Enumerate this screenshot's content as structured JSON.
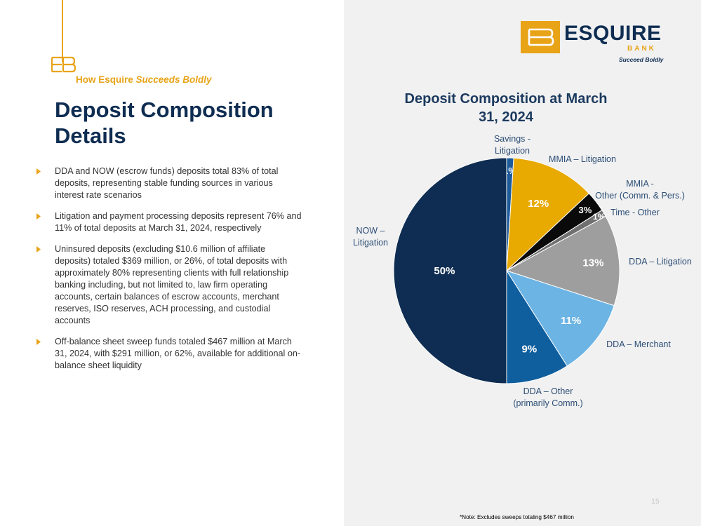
{
  "kicker": {
    "bold": "How Esquire ",
    "italic": "Succeeds Boldly"
  },
  "title": "Deposit Composition Details",
  "bullets": [
    "DDA and NOW (escrow funds) deposits total 83% of total deposits, representing stable funding sources in various interest rate scenarios",
    "Litigation and payment processing deposits represent 76% and 11% of total deposits at March 31, 2024, respectively",
    "Uninsured deposits (excluding $10.6 million of affiliate deposits) totaled $369 million, or 26%, of total deposits with approximately 80% representing clients with full relationship banking including, but not limited to, law firm operating accounts, certain balances of escrow accounts, merchant reserves, ISO reserves, ACH processing, and custodial accounts",
    "Off-balance sheet sweep funds totaled $467 million at March 31, 2024, with $291 million, or 62%, available for additional on-balance sheet liquidity"
  ],
  "logo": {
    "name": "ESQUIRE",
    "sub": "BANK",
    "tagline": "Succeed Boldly"
  },
  "page_number": "15",
  "footnote": "*Note: Excludes sweeps totaling $467 million",
  "colors": {
    "navy": "#0f2d52",
    "gold": "#e8a317",
    "panel": "#f1f1f2"
  },
  "icons": {
    "bullet": "gold-chevron-bullet",
    "brand": "eb-monogram"
  },
  "chart_data": {
    "type": "pie",
    "title": "Deposit Composition at March 31, 2024",
    "slices": [
      {
        "label": "Savings - Litigation",
        "value": 1,
        "data_label": "1%",
        "color": "#1d5a9a"
      },
      {
        "label": "MMIA – Litigation",
        "value": 12,
        "data_label": "12%",
        "color": "#e8a900"
      },
      {
        "label": "MMIA - Other (Comm. & Pers.)",
        "value": 3,
        "data_label": "3%",
        "color": "#0a0a0a"
      },
      {
        "label": "Time - Other",
        "value": 1,
        "data_label": "1%",
        "color": "#707070"
      },
      {
        "label": "DDA – Litigation",
        "value": 13,
        "data_label": "13%",
        "color": "#9e9e9e"
      },
      {
        "label": "DDA – Merchant",
        "value": 11,
        "data_label": "11%",
        "color": "#6cb4e4"
      },
      {
        "label": "DDA – Other (primarily Comm.)",
        "value": 9,
        "data_label": "9%",
        "color": "#0f5e9e"
      },
      {
        "label": "NOW – Litigation",
        "value": 50,
        "data_label": "50%",
        "color": "#0f2d52"
      }
    ],
    "start": "12 o'clock, clockwise"
  }
}
